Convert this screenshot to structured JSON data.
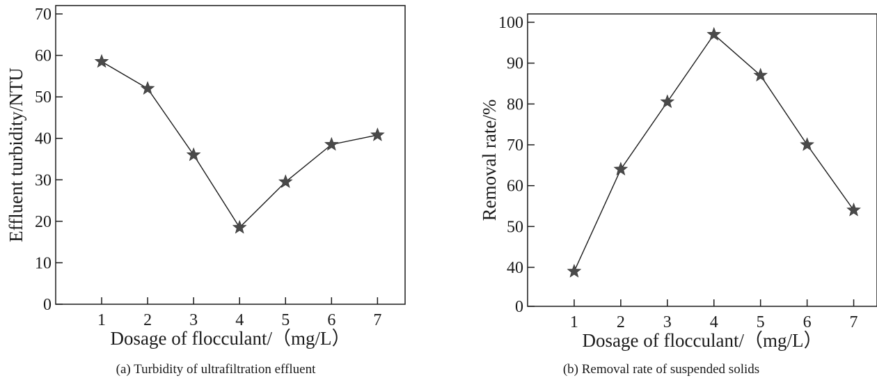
{
  "chart_data": [
    {
      "type": "line",
      "marker": "star",
      "x": [
        1,
        2,
        3,
        4,
        5,
        6,
        7
      ],
      "values": [
        58.5,
        52,
        36,
        18.5,
        29.5,
        38.5,
        40.8
      ],
      "xlabel": "Dosage of flocculant/（mg/L）",
      "ylabel": "Effluent turbidity/NTU",
      "xlim": [
        0,
        7.6
      ],
      "ylim": [
        0,
        70
      ],
      "yticks": [
        0,
        10,
        20,
        30,
        40,
        50,
        60,
        70
      ],
      "xticks": [
        1,
        2,
        3,
        4,
        5,
        6,
        7
      ],
      "grid": false,
      "caption": "(a) Turbidity of ultrafiltration effluent",
      "line_color": "#1a1a1a",
      "marker_color": "#4a4a4a"
    },
    {
      "type": "line",
      "marker": "star",
      "x": [
        1,
        2,
        3,
        4,
        5,
        6,
        7
      ],
      "values": [
        39,
        64,
        80.5,
        97,
        87,
        70,
        54
      ],
      "xlabel": "Dosage of flocculant/（mg/L）",
      "ylabel": "Removal rate/%",
      "xlim": [
        0,
        7.5
      ],
      "ylim": [
        0,
        100
      ],
      "axis_break": [
        0,
        35
      ],
      "yticks": [
        0,
        40,
        50,
        60,
        70,
        80,
        90,
        100
      ],
      "xticks": [
        1,
        2,
        3,
        4,
        5,
        6,
        7
      ],
      "grid": false,
      "caption": "(b) Removal rate of suspended solids",
      "line_color": "#1a1a1a",
      "marker_color": "#4a4a4a"
    }
  ]
}
